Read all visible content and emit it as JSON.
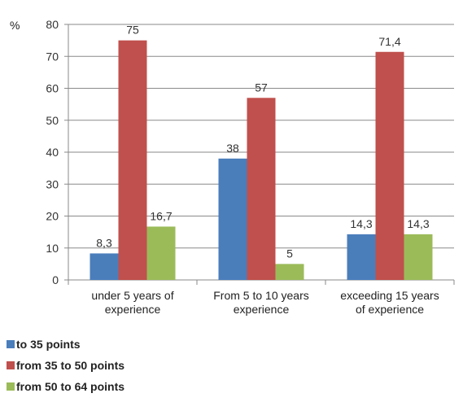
{
  "chart_data": {
    "type": "bar",
    "y_unit_label": "%",
    "categories": [
      [
        "under 5 years of",
        "experience"
      ],
      [
        "From 5 to 10 years",
        "experience"
      ],
      [
        "exceeding 15 years",
        "of experience"
      ]
    ],
    "series": [
      {
        "name": "to 35 points",
        "color": "#4a7ebb",
        "values": [
          8.3,
          38,
          14.3
        ],
        "labels": [
          "8,3",
          "38",
          "14,3"
        ]
      },
      {
        "name": "from 35 to 50 points",
        "color": "#c0504d",
        "values": [
          75,
          57,
          71.4
        ],
        "labels": [
          "75",
          "57",
          "71,4"
        ]
      },
      {
        "name": "from 50 to 64 points",
        "color": "#9bbb59",
        "values": [
          16.7,
          5,
          14.3
        ],
        "labels": [
          "16,7",
          "5",
          "14,3"
        ]
      }
    ],
    "ylim": [
      0,
      80
    ],
    "yticks": [
      0,
      10,
      20,
      30,
      40,
      50,
      60,
      70,
      80
    ],
    "grid": true,
    "legend_position": "bottom-left"
  }
}
